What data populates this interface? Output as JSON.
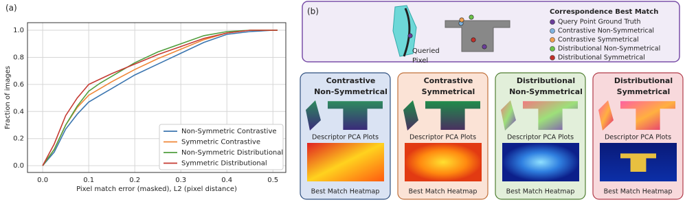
{
  "chart_data": {
    "type": "line",
    "title": "(a)",
    "x_label": "Pixel match error (masked), L2 (pixel distance)",
    "y_label": "Fraction of images",
    "x": [
      0,
      0.025,
      0.05,
      0.075,
      0.1,
      0.125,
      0.15,
      0.2,
      0.25,
      0.3,
      0.35,
      0.4,
      0.45,
      0.5,
      0.51
    ],
    "series": [
      {
        "name": "Non-Symmetric Contrastive",
        "color": "#3b75af",
        "values": [
          0,
          0.1,
          0.27,
          0.38,
          0.47,
          0.52,
          0.57,
          0.67,
          0.75,
          0.83,
          0.91,
          0.97,
          0.99,
          1.0,
          1.0
        ]
      },
      {
        "name": "Symmetric Contrastive",
        "color": "#ef8636",
        "values": [
          0,
          0.12,
          0.3,
          0.43,
          0.52,
          0.57,
          0.62,
          0.71,
          0.79,
          0.86,
          0.93,
          0.98,
          1.0,
          1.0,
          1.0
        ]
      },
      {
        "name": "Non-Symmetric Distributional",
        "color": "#519e3e",
        "values": [
          0,
          0.12,
          0.3,
          0.44,
          0.55,
          0.61,
          0.66,
          0.76,
          0.84,
          0.9,
          0.96,
          0.99,
          1.0,
          1.0,
          1.0
        ]
      },
      {
        "name": "Symmetric Distributional",
        "color": "#c53a32",
        "values": [
          0,
          0.16,
          0.37,
          0.5,
          0.6,
          0.64,
          0.68,
          0.75,
          0.82,
          0.88,
          0.94,
          0.98,
          1.0,
          1.0,
          1.0
        ]
      }
    ],
    "xlim": [
      -0.033,
      0.528
    ],
    "ylim": [
      -0.05,
      1.056
    ],
    "xticks": [
      {
        "value": 0,
        "label": "0.0"
      },
      0.1,
      0.2,
      0.3,
      0.4,
      0.5
    ],
    "yticks": [
      {
        "value": 0,
        "label": "0.0"
      },
      0.2,
      0.4,
      0.6,
      0.8,
      {
        "value": 1,
        "label": "1.0"
      }
    ],
    "grid": true,
    "legend": "lower right"
  },
  "diagram": {
    "label": "(b)",
    "query_label": [
      "Queried",
      "Pixel"
    ],
    "legend_title": "Correspondence Best Match",
    "legend": [
      {
        "label": "Query Point Ground Truth",
        "color": "#6a3d9a"
      },
      {
        "label": "Contrastive Non-Symmetrical",
        "color": "#7fb3e0"
      },
      {
        "label": "Contrastive Symmetrical",
        "color": "#f0a050"
      },
      {
        "label": "Distributional Non-Symmetrical",
        "color": "#6cc24a"
      },
      {
        "label": "Distributional Symmetrical",
        "color": "#c0302a"
      }
    ],
    "boxes": [
      {
        "title": [
          "Contrastive",
          "Non-Symmetrical"
        ],
        "pca": "Descriptor PCA Plots",
        "heatmap": "Best Match Heatmap",
        "color": "#dae3f3",
        "border": "#2f4f7f"
      },
      {
        "title": [
          "Contrastive",
          "Symmetrical"
        ],
        "pca": "Descriptor PCA Plots",
        "heatmap": "Best Match Heatmap",
        "color": "#fbe3d6",
        "border": "#c0703a"
      },
      {
        "title": [
          "Distributional",
          "Non-Symmetrical"
        ],
        "pca": "Descriptor PCA Plots",
        "heatmap": "Best Match Heatmap",
        "color": "#e2efda",
        "border": "#507e32"
      },
      {
        "title": [
          "Distributional",
          "Symmetrical"
        ],
        "pca": "Descriptor PCA Plots",
        "heatmap": "Best Match Heatmap",
        "color": "#f8d9dc",
        "border": "#b03a48"
      }
    ]
  }
}
